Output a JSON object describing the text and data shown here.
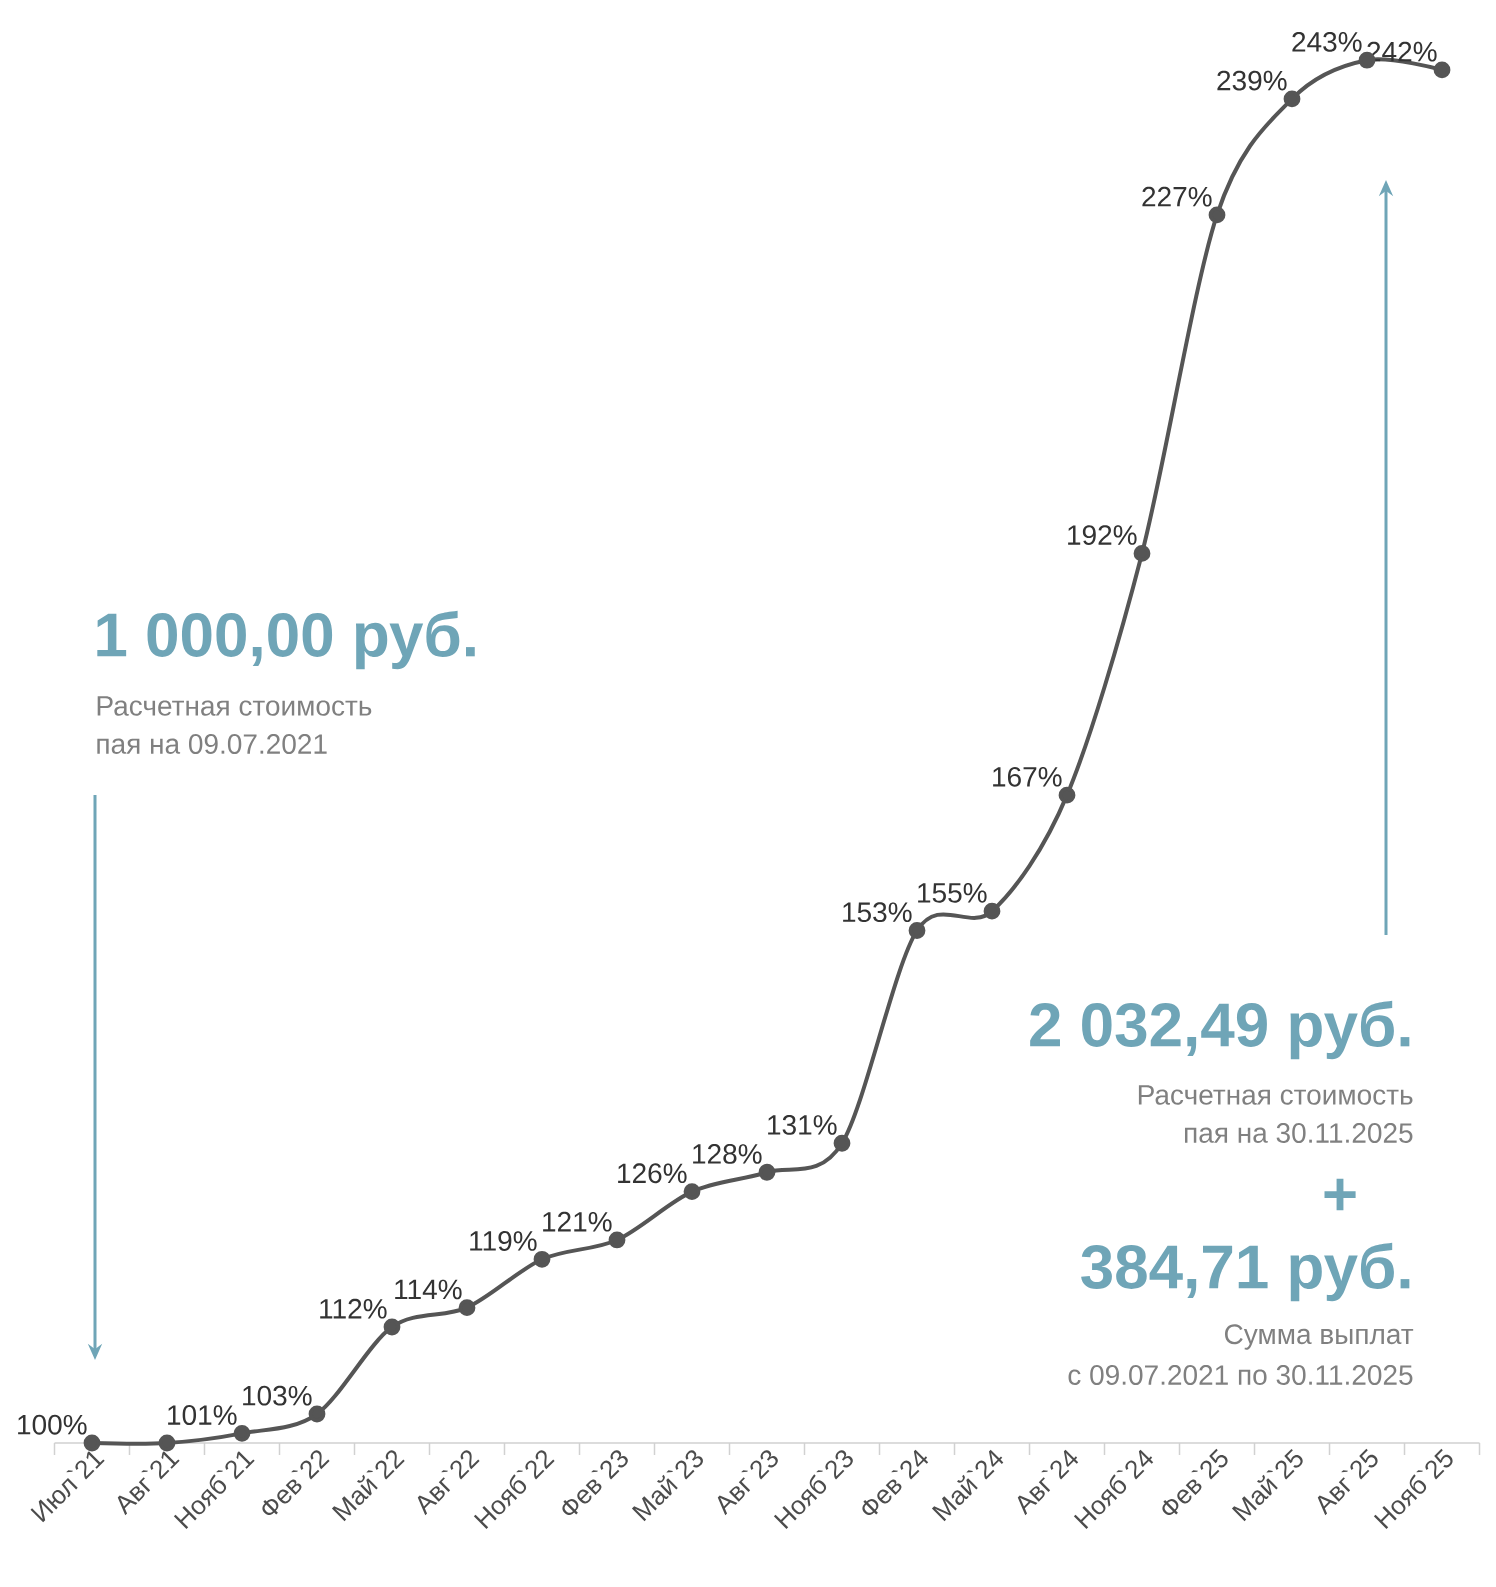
{
  "chart_data": {
    "type": "line",
    "categories": [
      "Июл`21",
      "Авг`21",
      "Нояб`21",
      "Фев`22",
      "Май`22",
      "Авг`22",
      "Нояб`22",
      "Фев`23",
      "Май`23",
      "Авг`23",
      "Нояб`23",
      "Фев`24",
      "Май`24",
      "Авг`24",
      "Нояб`24",
      "Фев`25",
      "Май`25",
      "Авг`25",
      "Нояб`25"
    ],
    "series": [
      {
        "color": "#555555",
        "values": [
          100,
          100,
          101,
          103,
          112,
          114,
          119,
          121,
          126,
          128,
          131,
          153,
          155,
          167,
          192,
          227,
          239,
          243,
          242
        ],
        "value_labels": [
          "100%",
          null,
          "101%",
          "103%",
          "112%",
          "114%",
          "119%",
          "121%",
          "126%",
          "128%",
          "131%",
          "153%",
          "155%",
          "167%",
          "192%",
          "227%",
          "239%",
          "243%",
          "242%"
        ]
      }
    ],
    "tick_labels": "x",
    "marker": "circle",
    "annotations": [
      "1 000,00 руб.",
      "Расчетная стоимость",
      "пая на 09.07.2021",
      "2 032,49 руб.",
      "Расчетная стоимость",
      "пая на 30.11.2025",
      "+",
      "384,71 руб.",
      "Сумма выплат",
      "с 09.07.2021 по 30.11.2025"
    ]
  }
}
